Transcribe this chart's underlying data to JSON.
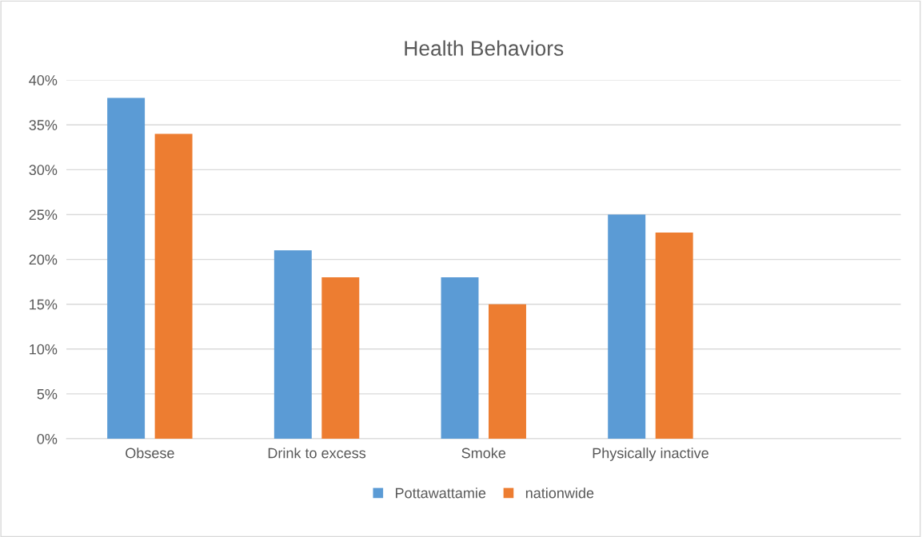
{
  "chart_data": {
    "type": "bar",
    "title": "Health Behaviors",
    "categories": [
      "Obsese",
      "Drink to excess",
      "Smoke",
      "Physically inactive",
      null
    ],
    "series": [
      {
        "name": "Pottawattamie",
        "color": "#5b9bd5",
        "values": [
          38,
          21,
          18,
          25,
          null
        ]
      },
      {
        "name": "nationwide",
        "color": "#ed7d31",
        "values": [
          34,
          18,
          15,
          23,
          null
        ]
      }
    ],
    "ylim": [
      0,
      40
    ],
    "yticks": [
      {
        "value": 0,
        "label": "0%"
      },
      {
        "value": 5,
        "label": "5%"
      },
      {
        "value": 10,
        "label": "10%"
      },
      {
        "value": 15,
        "label": "15%"
      },
      {
        "value": 20,
        "label": "20%"
      },
      {
        "value": 25,
        "label": "25%"
      },
      {
        "value": 30,
        "label": "30%"
      },
      {
        "value": 35,
        "label": "35%"
      },
      {
        "value": 40,
        "label": "40%"
      }
    ],
    "grid": "y",
    "legend": "bottom"
  }
}
